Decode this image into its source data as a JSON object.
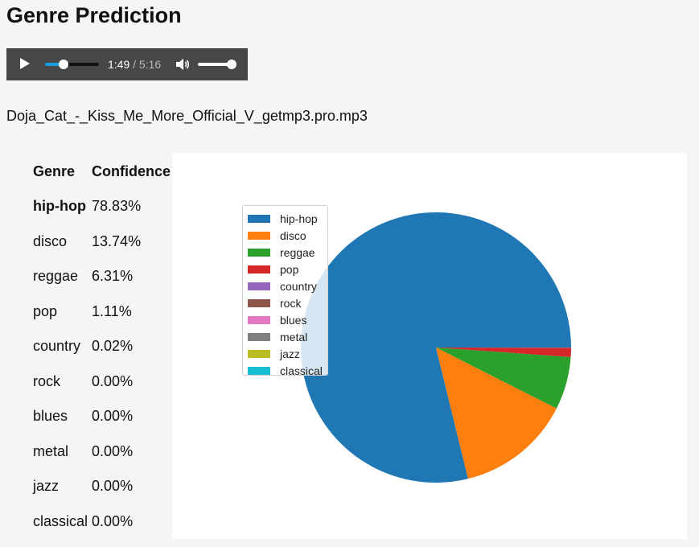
{
  "page": {
    "title": "Genre Prediction",
    "filename": "Doja_Cat_-_Kiss_Me_More_Official_V_getmp3.pro.mp3"
  },
  "player": {
    "current_time": "1:49",
    "separator": "/",
    "duration": "5:16",
    "progress_fraction": 0.345,
    "volume_fraction": 0.95,
    "play_icon": "play-icon",
    "volume_icon": "volume-icon"
  },
  "table": {
    "headers": [
      "Genre",
      "Confidence"
    ],
    "rows": [
      {
        "genre": "hip-hop",
        "confidence": "78.83%"
      },
      {
        "genre": "disco",
        "confidence": "13.74%"
      },
      {
        "genre": "reggae",
        "confidence": "6.31%"
      },
      {
        "genre": "pop",
        "confidence": "1.11%"
      },
      {
        "genre": "country",
        "confidence": "0.02%"
      },
      {
        "genre": "rock",
        "confidence": "0.00%"
      },
      {
        "genre": "blues",
        "confidence": "0.00%"
      },
      {
        "genre": "metal",
        "confidence": "0.00%"
      },
      {
        "genre": "jazz",
        "confidence": "0.00%"
      },
      {
        "genre": "classical",
        "confidence": "0.00%"
      }
    ]
  },
  "chart_data": {
    "type": "pie",
    "title": "",
    "legend_placement": "upper-left",
    "start_angle": 0,
    "direction": "counterclockwise",
    "categories": [
      "hip-hop",
      "disco",
      "reggae",
      "pop",
      "country",
      "rock",
      "blues",
      "metal",
      "jazz",
      "classical"
    ],
    "values": [
      78.83,
      13.74,
      6.31,
      1.11,
      0.02,
      0.0,
      0.0,
      0.0,
      0.0,
      0.0
    ],
    "colors": [
      "#1f77b4",
      "#ff7f0e",
      "#2ca02c",
      "#d62728",
      "#9467bd",
      "#8c564b",
      "#e377c2",
      "#7f7f7f",
      "#bcbd22",
      "#17becf"
    ]
  }
}
